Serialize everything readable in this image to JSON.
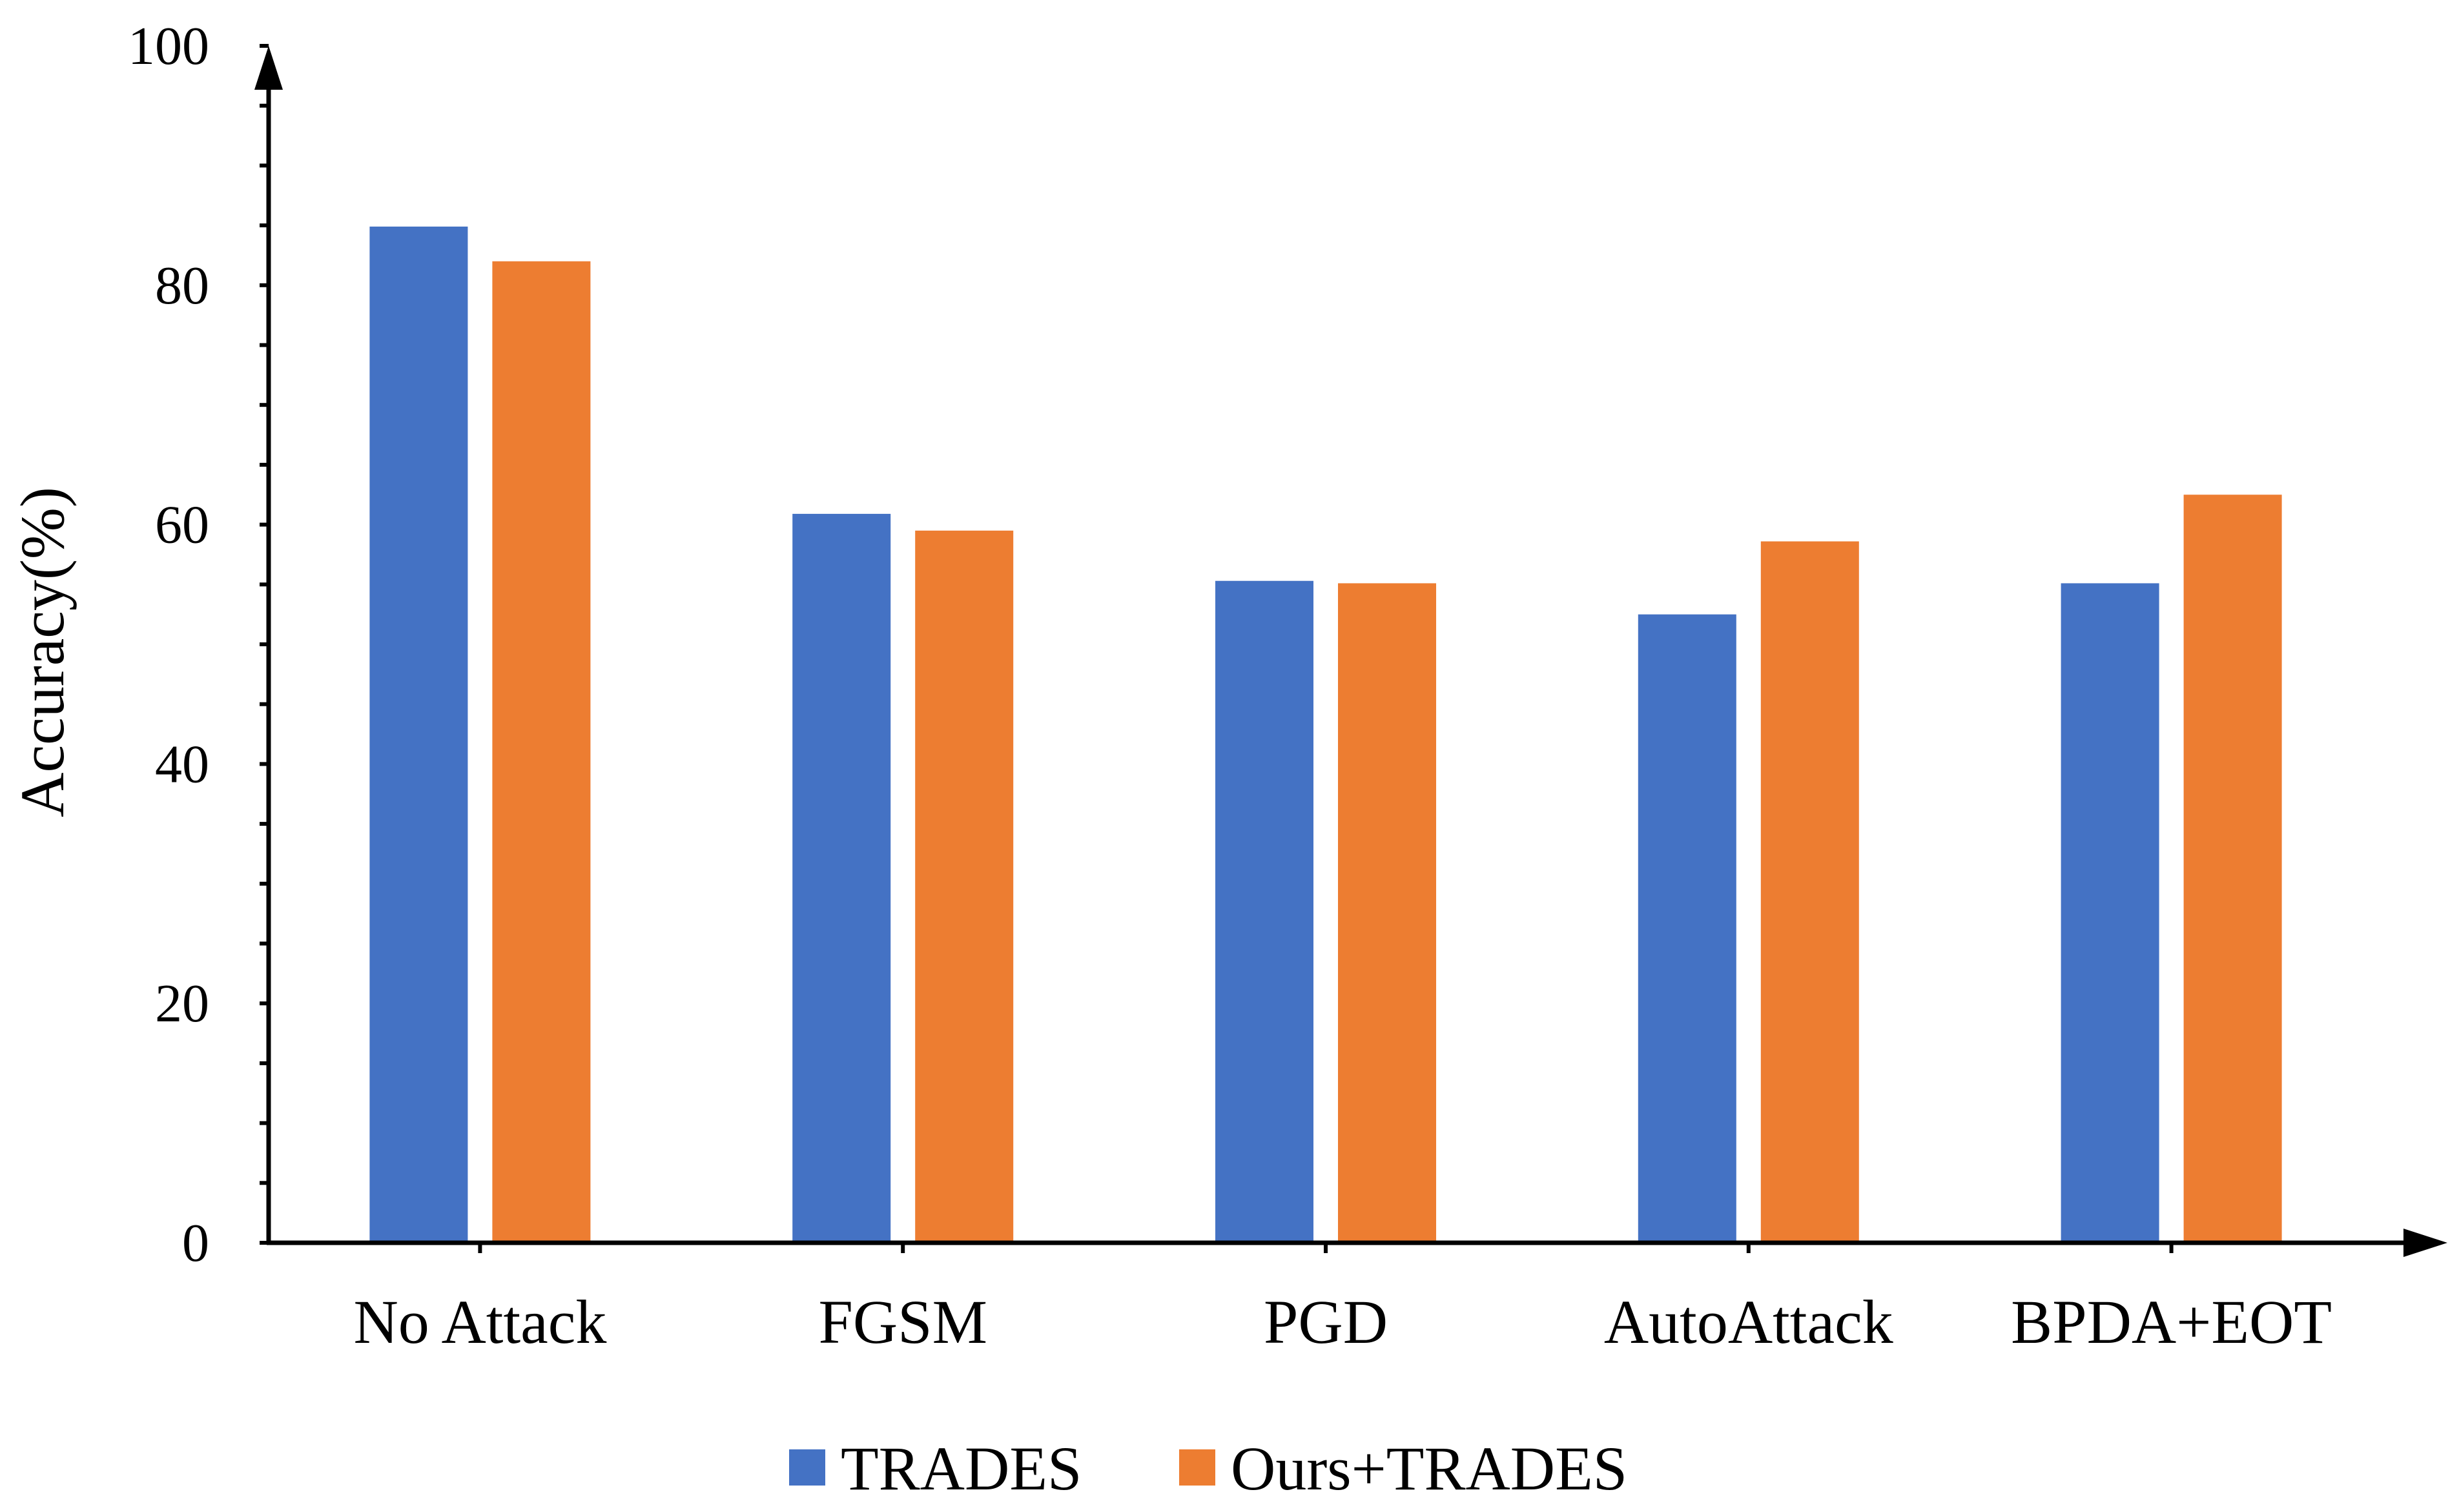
{
  "chart_data": {
    "type": "bar",
    "title": "",
    "xlabel": "",
    "ylabel": "Accuracy(%)",
    "ylim": [
      0,
      100
    ],
    "yticks": [
      0,
      20,
      40,
      60,
      80,
      100
    ],
    "grid": false,
    "legend_position": "bottom",
    "categories": [
      "No Attack",
      "FGSM",
      "PGD",
      "AutoAttack",
      "BPDA+EOT"
    ],
    "series": [
      {
        "name": "TRADES",
        "color": "#4472C4",
        "values": [
          84.9,
          60.9,
          55.3,
          52.5,
          55.1
        ]
      },
      {
        "name": "Ours+TRADES",
        "color": "#ED7D31",
        "values": [
          82.0,
          59.5,
          55.1,
          58.6,
          62.5
        ]
      }
    ]
  }
}
